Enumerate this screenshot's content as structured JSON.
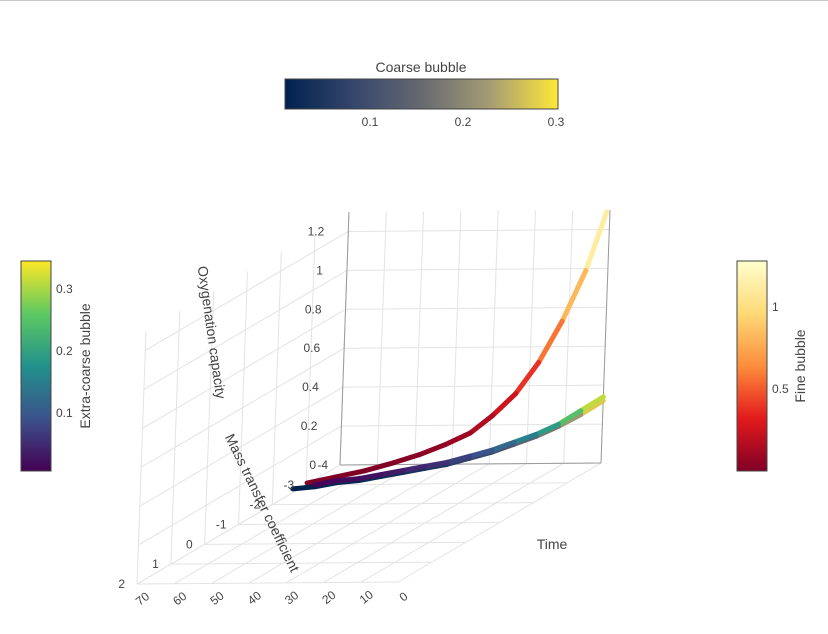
{
  "chart_data": {
    "type": "line3d",
    "axes": {
      "x": {
        "title": "Time",
        "ticks": [
          "0",
          "10",
          "20",
          "30",
          "40",
          "50",
          "60",
          "70"
        ]
      },
      "y": {
        "title": "Mass transfer coefficient",
        "ticks": [
          "-4",
          "-3",
          "-2",
          "-1",
          "0",
          "1",
          "2"
        ]
      },
      "z": {
        "title": "Oxygenation capacity",
        "ticks": [
          "0",
          "0.2",
          "0.4",
          "0.6",
          "0.8",
          "1",
          "1.2"
        ]
      }
    },
    "grid": true,
    "series": [
      {
        "name": "Fine bubble",
        "colorscale": "YlOrRd",
        "colorbar": {
          "title": "Fine bubble",
          "ticks": [
            "0.5",
            "1"
          ],
          "position": "right"
        },
        "x": [
          0,
          5,
          10,
          15,
          20,
          25,
          30,
          35,
          40,
          45,
          50,
          55,
          60
        ],
        "y": [
          -3.9,
          -3.9,
          -3.8,
          -3.7,
          -3.6,
          -3.5,
          -3.4,
          -3.2,
          -3.0,
          -2.8,
          -2.5,
          -2.2,
          -1.9
        ],
        "z": [
          1.3,
          1.0,
          0.75,
          0.55,
          0.4,
          0.3,
          0.22,
          0.18,
          0.15,
          0.13,
          0.12,
          0.12,
          0.12
        ],
        "color": [
          1.3,
          1.0,
          0.75,
          0.55,
          0.4,
          0.3,
          0.22,
          0.18,
          0.15,
          0.13,
          0.12,
          0.12,
          0.12
        ]
      },
      {
        "name": "Coarse bubble",
        "colorscale": "Cividis",
        "colorbar": {
          "title": "Coarse bubble",
          "ticks": [
            "0.1",
            "0.2",
            "0.3"
          ],
          "position": "top"
        },
        "x": [
          0,
          5,
          10,
          15,
          20,
          25,
          30,
          35,
          40,
          45,
          50,
          55,
          60,
          65,
          70
        ],
        "y": [
          -4.0,
          -3.9,
          -3.8,
          -3.7,
          -3.6,
          -3.5,
          -3.4,
          -3.3,
          -3.2,
          -3.1,
          -3.0,
          -2.9,
          -2.8,
          -2.7,
          -2.6
        ],
        "z": [
          0.32,
          0.26,
          0.21,
          0.17,
          0.14,
          0.11,
          0.09,
          0.07,
          0.06,
          0.05,
          0.04,
          0.03,
          0.03,
          0.02,
          0.02
        ],
        "color": [
          0.32,
          0.26,
          0.21,
          0.17,
          0.14,
          0.11,
          0.09,
          0.07,
          0.06,
          0.05,
          0.04,
          0.03,
          0.03,
          0.02,
          0.02
        ]
      },
      {
        "name": "Extra-coarse bubble",
        "colorscale": "Viridis",
        "colorbar": {
          "title": "Extra-coarse bubble",
          "ticks": [
            "0.1",
            "0.2",
            "0.3"
          ],
          "position": "left"
        },
        "x": [
          0,
          5,
          10,
          15,
          20,
          25,
          30,
          35,
          40,
          45,
          50,
          55,
          60,
          65
        ],
        "y": [
          -4.0,
          -3.9,
          -3.8,
          -3.7,
          -3.6,
          -3.5,
          -3.4,
          -3.3,
          -3.2,
          -3.1,
          -3.0,
          -2.9,
          -2.8,
          -2.7
        ],
        "z": [
          0.34,
          0.28,
          0.22,
          0.18,
          0.15,
          0.12,
          0.1,
          0.08,
          0.07,
          0.06,
          0.05,
          0.04,
          0.04,
          0.03
        ],
        "color": [
          0.34,
          0.28,
          0.22,
          0.18,
          0.15,
          0.12,
          0.1,
          0.08,
          0.07,
          0.06,
          0.05,
          0.04,
          0.04,
          0.03
        ]
      }
    ]
  }
}
